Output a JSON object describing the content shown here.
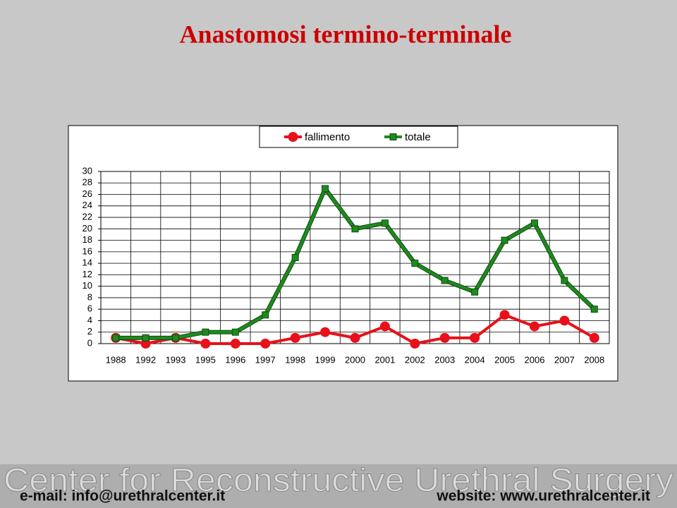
{
  "chart_data": {
    "type": "line",
    "title": "Anastomosi termino-terminale",
    "categories": [
      "1988",
      "1992",
      "1993",
      "1995",
      "1996",
      "1997",
      "1998",
      "1999",
      "2000",
      "2001",
      "2002",
      "2003",
      "2004",
      "2005",
      "2006",
      "2007",
      "2008"
    ],
    "series": [
      {
        "name": "fallimento",
        "color": "#e8101a",
        "values": [
          1,
          0,
          1,
          0,
          0,
          0,
          1,
          2,
          1,
          3,
          0,
          1,
          1,
          5,
          3,
          4,
          1
        ]
      },
      {
        "name": "totale",
        "color": "#1f8a1f",
        "values": [
          1,
          1,
          1,
          2,
          2,
          5,
          15,
          27,
          20,
          21,
          14,
          11,
          9,
          18,
          21,
          11,
          6
        ]
      }
    ],
    "ylim": [
      0,
      30
    ],
    "yticks": [
      0,
      2,
      4,
      6,
      8,
      10,
      12,
      14,
      16,
      18,
      20,
      22,
      24,
      26,
      28,
      30
    ],
    "grid": true,
    "legend": "top"
  },
  "footer": {
    "banner": "Center for Reconstructive Urethral Surgery",
    "email": "e-mail: info@urethralcenter.it",
    "website": "website: www.urethralcenter.it"
  }
}
